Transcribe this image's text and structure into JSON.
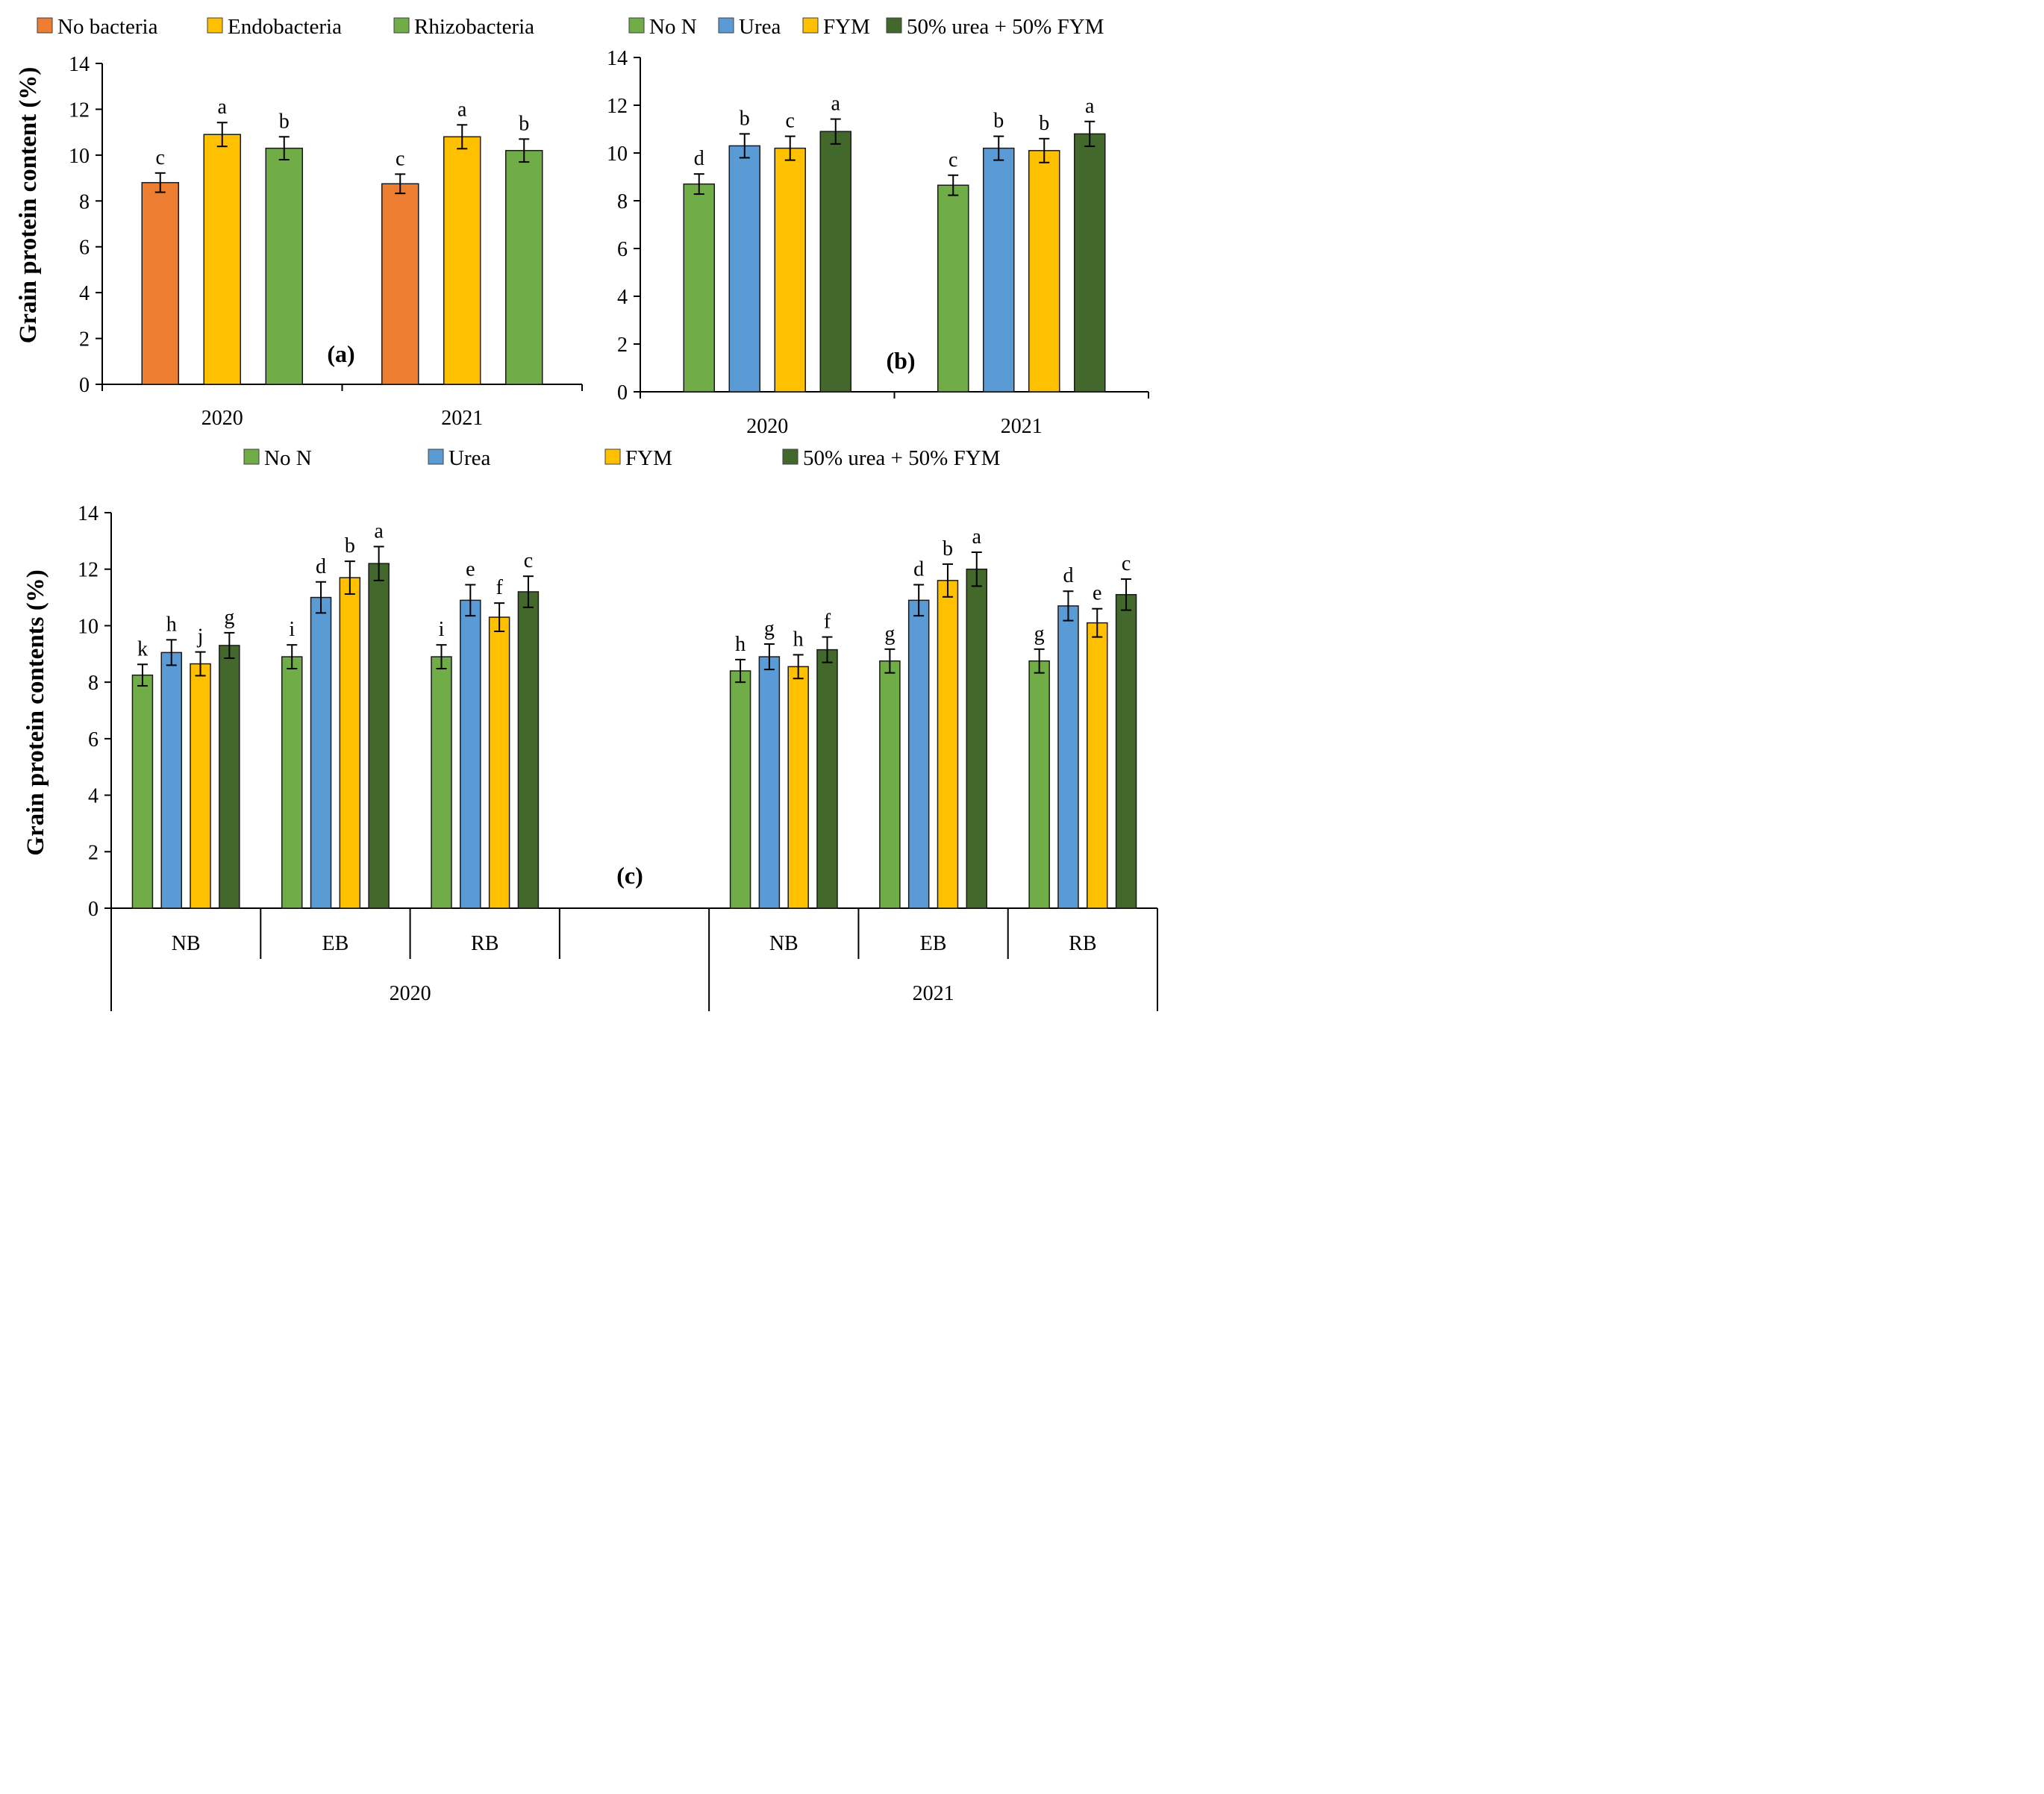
{
  "chart_data": [
    {
      "id": "a",
      "type": "bar",
      "panel_label": "(a)",
      "ylabel": "Grain protein content (%)",
      "xlabel": "",
      "ylim": [
        0,
        14
      ],
      "ytick_step": 2,
      "categories": [
        "2020",
        "2021"
      ],
      "legend": [
        "No bacteria",
        "Endobacteria",
        "Rhizobacteria"
      ],
      "series": [
        {
          "name": "No bacteria",
          "color": "#ED7D31",
          "values": [
            8.8,
            8.75
          ],
          "errors": [
            0.42,
            0.42
          ],
          "letters": [
            "c",
            "c"
          ]
        },
        {
          "name": "Endobacteria",
          "color": "#FFC000",
          "values": [
            10.9,
            10.8
          ],
          "errors": [
            0.52,
            0.52
          ],
          "letters": [
            "a",
            "a"
          ]
        },
        {
          "name": "Rhizobacteria",
          "color": "#70AD47",
          "values": [
            10.3,
            10.2
          ],
          "errors": [
            0.5,
            0.5
          ],
          "letters": [
            "b",
            "b"
          ]
        }
      ]
    },
    {
      "id": "b",
      "type": "bar",
      "panel_label": "(b)",
      "ylabel": "",
      "xlabel": "",
      "ylim": [
        0,
        14
      ],
      "ytick_step": 2,
      "categories": [
        "2020",
        "2021"
      ],
      "legend": [
        "No N",
        "Urea",
        "FYM",
        "50% urea + 50% FYM"
      ],
      "series": [
        {
          "name": "No N",
          "color": "#70AD47",
          "values": [
            8.7,
            8.65
          ],
          "errors": [
            0.42,
            0.42
          ],
          "letters": [
            "d",
            "c"
          ]
        },
        {
          "name": "Urea",
          "color": "#5B9BD5",
          "values": [
            10.3,
            10.2
          ],
          "errors": [
            0.5,
            0.5
          ],
          "letters": [
            "b",
            "b"
          ]
        },
        {
          "name": "FYM",
          "color": "#FFC000",
          "values": [
            10.2,
            10.1
          ],
          "errors": [
            0.5,
            0.5
          ],
          "letters": [
            "c",
            "b"
          ]
        },
        {
          "name": "50% urea + 50% FYM",
          "color": "#43682B",
          "values": [
            10.9,
            10.8
          ],
          "errors": [
            0.52,
            0.52
          ],
          "letters": [
            "a",
            "a"
          ]
        }
      ]
    },
    {
      "id": "c",
      "type": "bar",
      "panel_label": "(c)",
      "ylabel": "Grain protein contents (%)",
      "xlabel": "",
      "ylim": [
        0,
        14
      ],
      "ytick_step": 2,
      "categories": [
        "NB",
        "EB",
        "RB",
        "",
        "NB",
        "EB",
        "RB"
      ],
      "groups": [
        {
          "label": "2020",
          "categories": [
            "NB",
            "EB",
            "RB",
            ""
          ]
        },
        {
          "label": "2021",
          "categories": [
            "NB",
            "EB",
            "RB"
          ]
        }
      ],
      "legend": [
        "No N",
        "Urea",
        "FYM",
        "50% urea + 50% FYM"
      ],
      "series": [
        {
          "name": "No N",
          "color": "#70AD47",
          "values": [
            8.25,
            8.9,
            8.9,
            null,
            8.4,
            8.75,
            8.75
          ],
          "errors": [
            0.38,
            0.42,
            0.42,
            null,
            0.4,
            0.42,
            0.42
          ],
          "letters": [
            "k",
            "i",
            "i",
            "",
            "h",
            "g",
            "g"
          ]
        },
        {
          "name": "Urea",
          "color": "#5B9BD5",
          "values": [
            9.05,
            11.0,
            10.9,
            null,
            8.9,
            10.9,
            10.7
          ],
          "errors": [
            0.45,
            0.55,
            0.55,
            null,
            0.45,
            0.55,
            0.52
          ],
          "letters": [
            "h",
            "d",
            "e",
            "",
            "g",
            "d",
            "d"
          ]
        },
        {
          "name": "FYM",
          "color": "#FFC000",
          "values": [
            8.65,
            11.7,
            10.3,
            null,
            8.55,
            11.6,
            10.1
          ],
          "errors": [
            0.42,
            0.58,
            0.5,
            null,
            0.42,
            0.58,
            0.5
          ],
          "letters": [
            "j",
            "b",
            "f",
            "",
            "h",
            "b",
            "e"
          ]
        },
        {
          "name": "50% urea + 50% FYM",
          "color": "#43682B",
          "values": [
            9.3,
            12.2,
            11.2,
            null,
            9.15,
            12.0,
            11.1
          ],
          "errors": [
            0.45,
            0.6,
            0.55,
            null,
            0.45,
            0.6,
            0.55
          ],
          "letters": [
            "g",
            "a",
            "c",
            "",
            "f",
            "a",
            "c"
          ]
        }
      ]
    }
  ]
}
